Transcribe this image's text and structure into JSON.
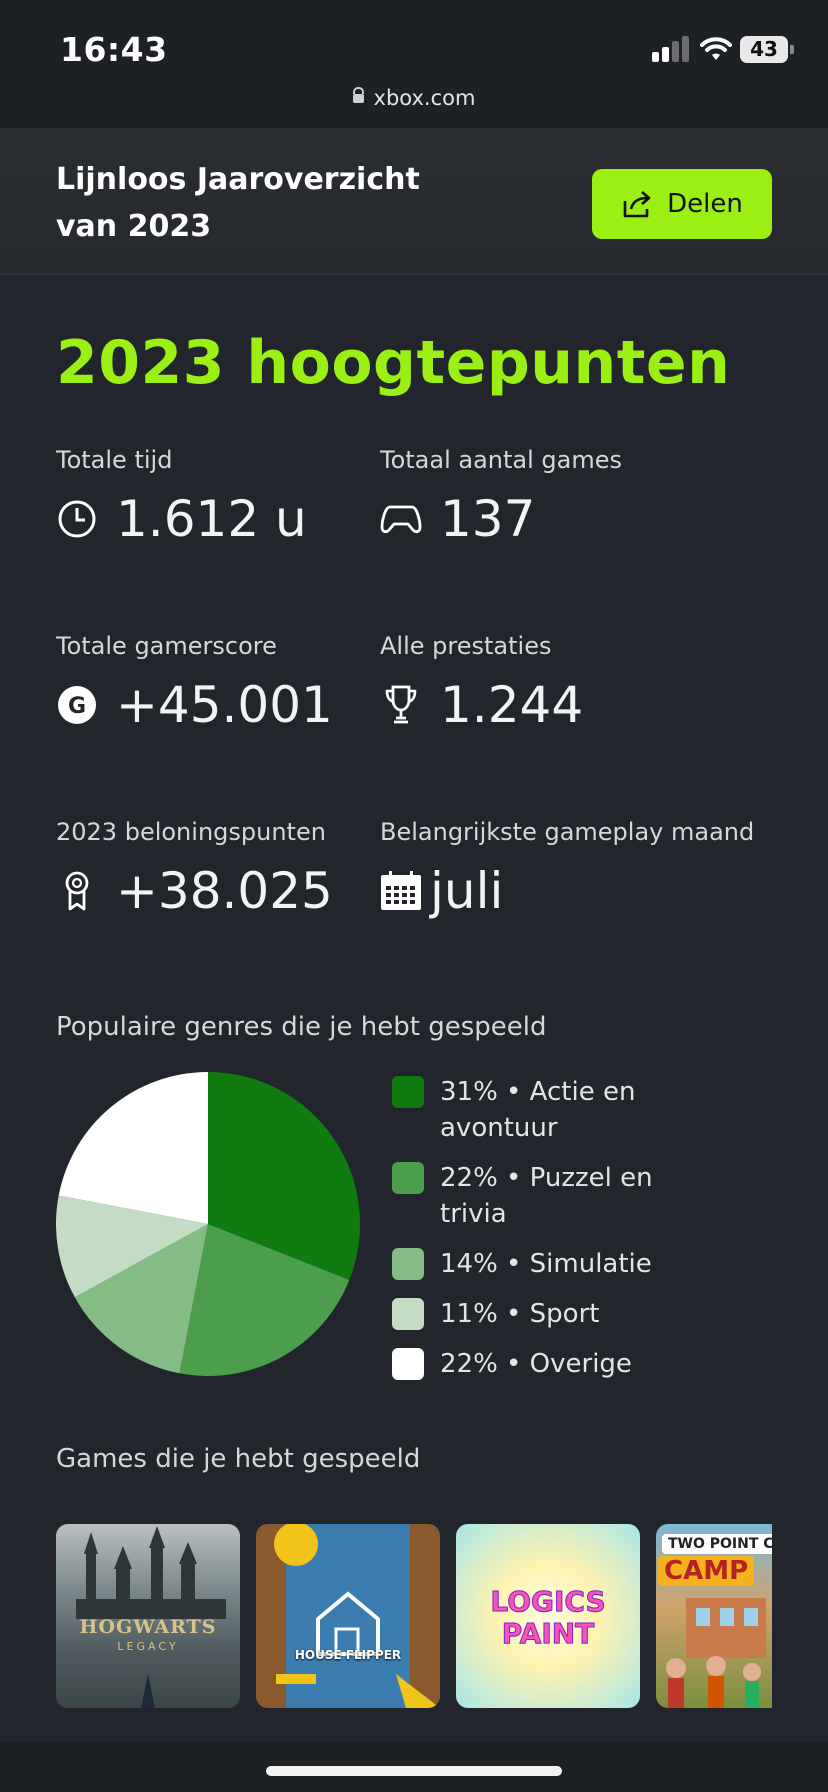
{
  "status": {
    "time": "16:43",
    "battery": "43"
  },
  "browser": {
    "url": "xbox.com"
  },
  "header": {
    "title": "Lijnloos Jaaroverzicht van 2023",
    "share_label": "Delen"
  },
  "highlights_title": "2023 hoogtepunten",
  "stats": [
    {
      "label": "Totale tijd",
      "value": "1.612 u",
      "icon": "clock-icon"
    },
    {
      "label": "Totaal aantal games",
      "value": "137",
      "icon": "controller-icon"
    },
    {
      "label": "Totale gamerscore",
      "value": "+45.001",
      "icon": "gamerscore-icon"
    },
    {
      "label": "Alle prestaties",
      "value": "1.244",
      "icon": "trophy-icon"
    },
    {
      "label": "2023 beloningspunten",
      "value": "+38.025",
      "icon": "medal-icon"
    },
    {
      "label": "Belangrijkste gameplay maand",
      "value": "juli",
      "icon": "calendar-icon"
    }
  ],
  "genres": {
    "title": "Populaire genres die je hebt gespeeld",
    "items": [
      {
        "text": "31% • Actie en avontuur",
        "percent": 31,
        "color": "#107c10"
      },
      {
        "text": "22% • Puzzel en trivia",
        "percent": 22,
        "color": "#4c9e4c"
      },
      {
        "text": "14% • Simulatie",
        "percent": 14,
        "color": "#85bc85"
      },
      {
        "text": "11% • Sport",
        "percent": 11,
        "color": "#c3dcc3"
      },
      {
        "text": "22% • Overige",
        "percent": 22,
        "color": "#ffffff"
      }
    ]
  },
  "games": {
    "title": "Games die je hebt gespeeld",
    "items": [
      {
        "name": "HOGWARTS",
        "subtitle": "LEGACY"
      },
      {
        "name": "HOUSE FLIPPER"
      },
      {
        "name": "LOGICS PAINT"
      },
      {
        "name": "TWO POINT CAMPUS",
        "short": "CAMP"
      }
    ]
  },
  "colors": {
    "accent": "#9bef12",
    "background": "#22252b"
  }
}
